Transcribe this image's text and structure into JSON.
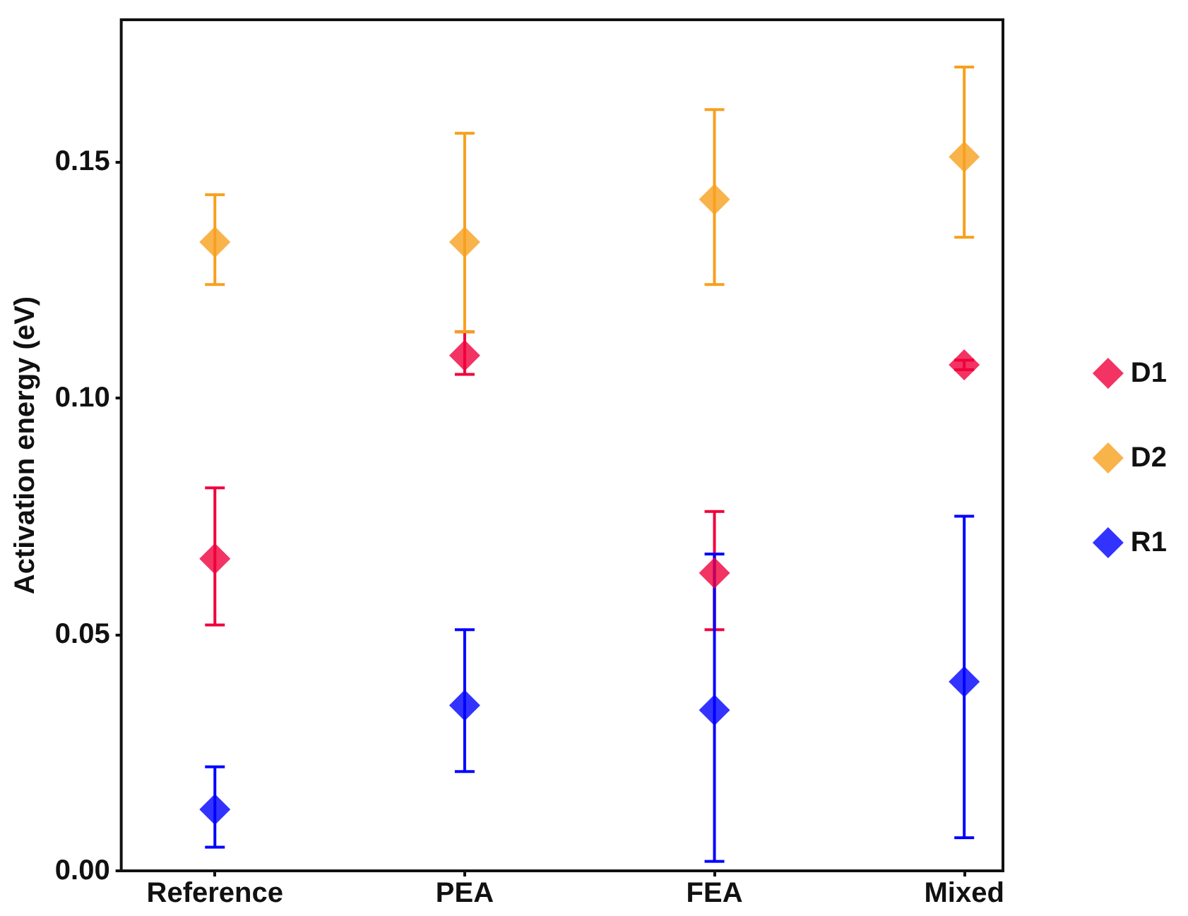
{
  "chart_data": {
    "type": "scatter",
    "ylabel": "Activation energy (eV)",
    "categories": [
      "Reference",
      "PEA",
      "FEA",
      "Mixed"
    ],
    "series": [
      {
        "name": "D1",
        "color": "#f0003c",
        "values": [
          0.066,
          0.109,
          0.063,
          0.107
        ],
        "errors": [
          [
            0.052,
            0.081
          ],
          [
            0.105,
            0.114
          ],
          [
            0.051,
            0.076
          ],
          [
            0.106,
            0.108
          ]
        ]
      },
      {
        "name": "D2",
        "color": "#f7a01e",
        "values": [
          0.133,
          0.133,
          0.142,
          0.151
        ],
        "errors": [
          [
            0.124,
            0.143
          ],
          [
            0.114,
            0.156
          ],
          [
            0.124,
            0.161
          ],
          [
            0.134,
            0.17
          ]
        ]
      },
      {
        "name": "R1",
        "color": "#0000ff",
        "values": [
          0.013,
          0.035,
          0.034,
          0.04
        ],
        "errors": [
          [
            0.005,
            0.022
          ],
          [
            0.021,
            0.051
          ],
          [
            0.002,
            0.067
          ],
          [
            0.007,
            0.075
          ]
        ]
      }
    ],
    "ylim": [
      0,
      0.18
    ],
    "yticks": [
      {
        "value": 0,
        "label": "0.00"
      },
      {
        "value": 0.05,
        "label": "0.05"
      },
      {
        "value": 0.1,
        "label": "0.10"
      },
      {
        "value": 0.15,
        "label": "0.15"
      }
    ],
    "grid": false,
    "legend": "right",
    "marker": "diamond"
  }
}
